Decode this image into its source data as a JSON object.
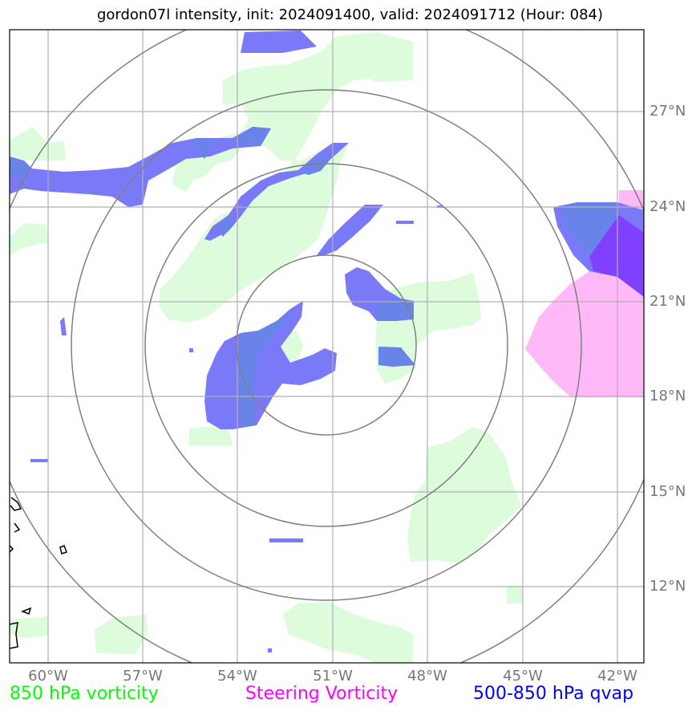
{
  "title": "gordon07l intensity, init: 2024091400, valid: 2024091712 (Hour: 084)",
  "lat_labels": [
    "27°N",
    "24°N",
    "21°N",
    "18°N",
    "15°N",
    "12°N"
  ],
  "lon_labels": [
    "60°W",
    "57°W",
    "54°W",
    "51°W",
    "48°W",
    "45°W",
    "42°W"
  ],
  "legend": {
    "vorticity_850": "850 hPa vorticity",
    "steering_vorticity": "Steering Vorticity",
    "qvap_500_850": "500-850 hPa qvap"
  },
  "colors": {
    "vorticity_850": "#00ff00",
    "steering_vorticity": "#ff00ff",
    "qvap_500_850": "#0000ff",
    "vorticity_fill": "#dcfcdc",
    "steering_fill": "#ffb8f8",
    "qvap_fill": "#7a7af8",
    "overlap_fill": "#6884e8",
    "rings": "#808080",
    "grid": "#b0b0b0"
  }
}
